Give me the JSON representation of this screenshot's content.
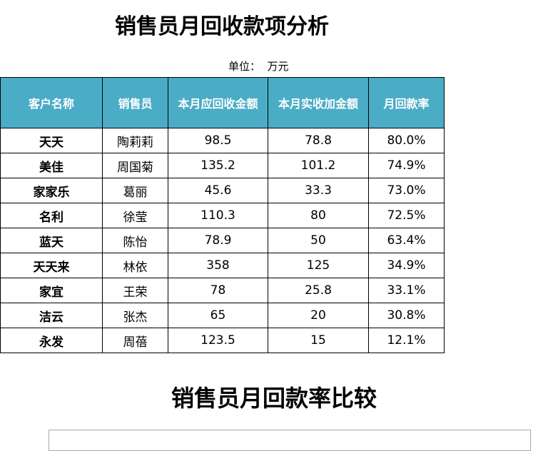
{
  "title": "销售员月回收款项分析",
  "unit": "单位：  万元",
  "table": {
    "headers": [
      "客户名称",
      "销售员",
      "本月应回收金额",
      "本月实收加金额",
      "月回款率"
    ],
    "rows": [
      [
        "天天",
        "陶莉莉",
        "98.5",
        "78.8",
        "80.0%"
      ],
      [
        "美佳",
        "周国菊",
        "135.2",
        "101.2",
        "74.9%"
      ],
      [
        "家家乐",
        "葛丽",
        "45.6",
        "33.3",
        "73.0%"
      ],
      [
        "名利",
        "徐莹",
        "110.3",
        "80",
        "72.5%"
      ],
      [
        "蓝天",
        "陈怡",
        "78.9",
        "50",
        "63.4%"
      ],
      [
        "天天来",
        "林依",
        "358",
        "125",
        "34.9%"
      ],
      [
        "家宜",
        "王荣",
        "78",
        "25.8",
        "33.1%"
      ],
      [
        "洁云",
        "张杰",
        "65",
        "20",
        "30.8%"
      ],
      [
        "永发",
        "周蓓",
        "123.5",
        "15",
        "12.1%"
      ]
    ]
  },
  "chart_section": {
    "title": "销售员月回款率比较"
  },
  "colors": {
    "header_bg": "#4bacc6",
    "header_text": "#ffffff",
    "border": "#000000"
  }
}
